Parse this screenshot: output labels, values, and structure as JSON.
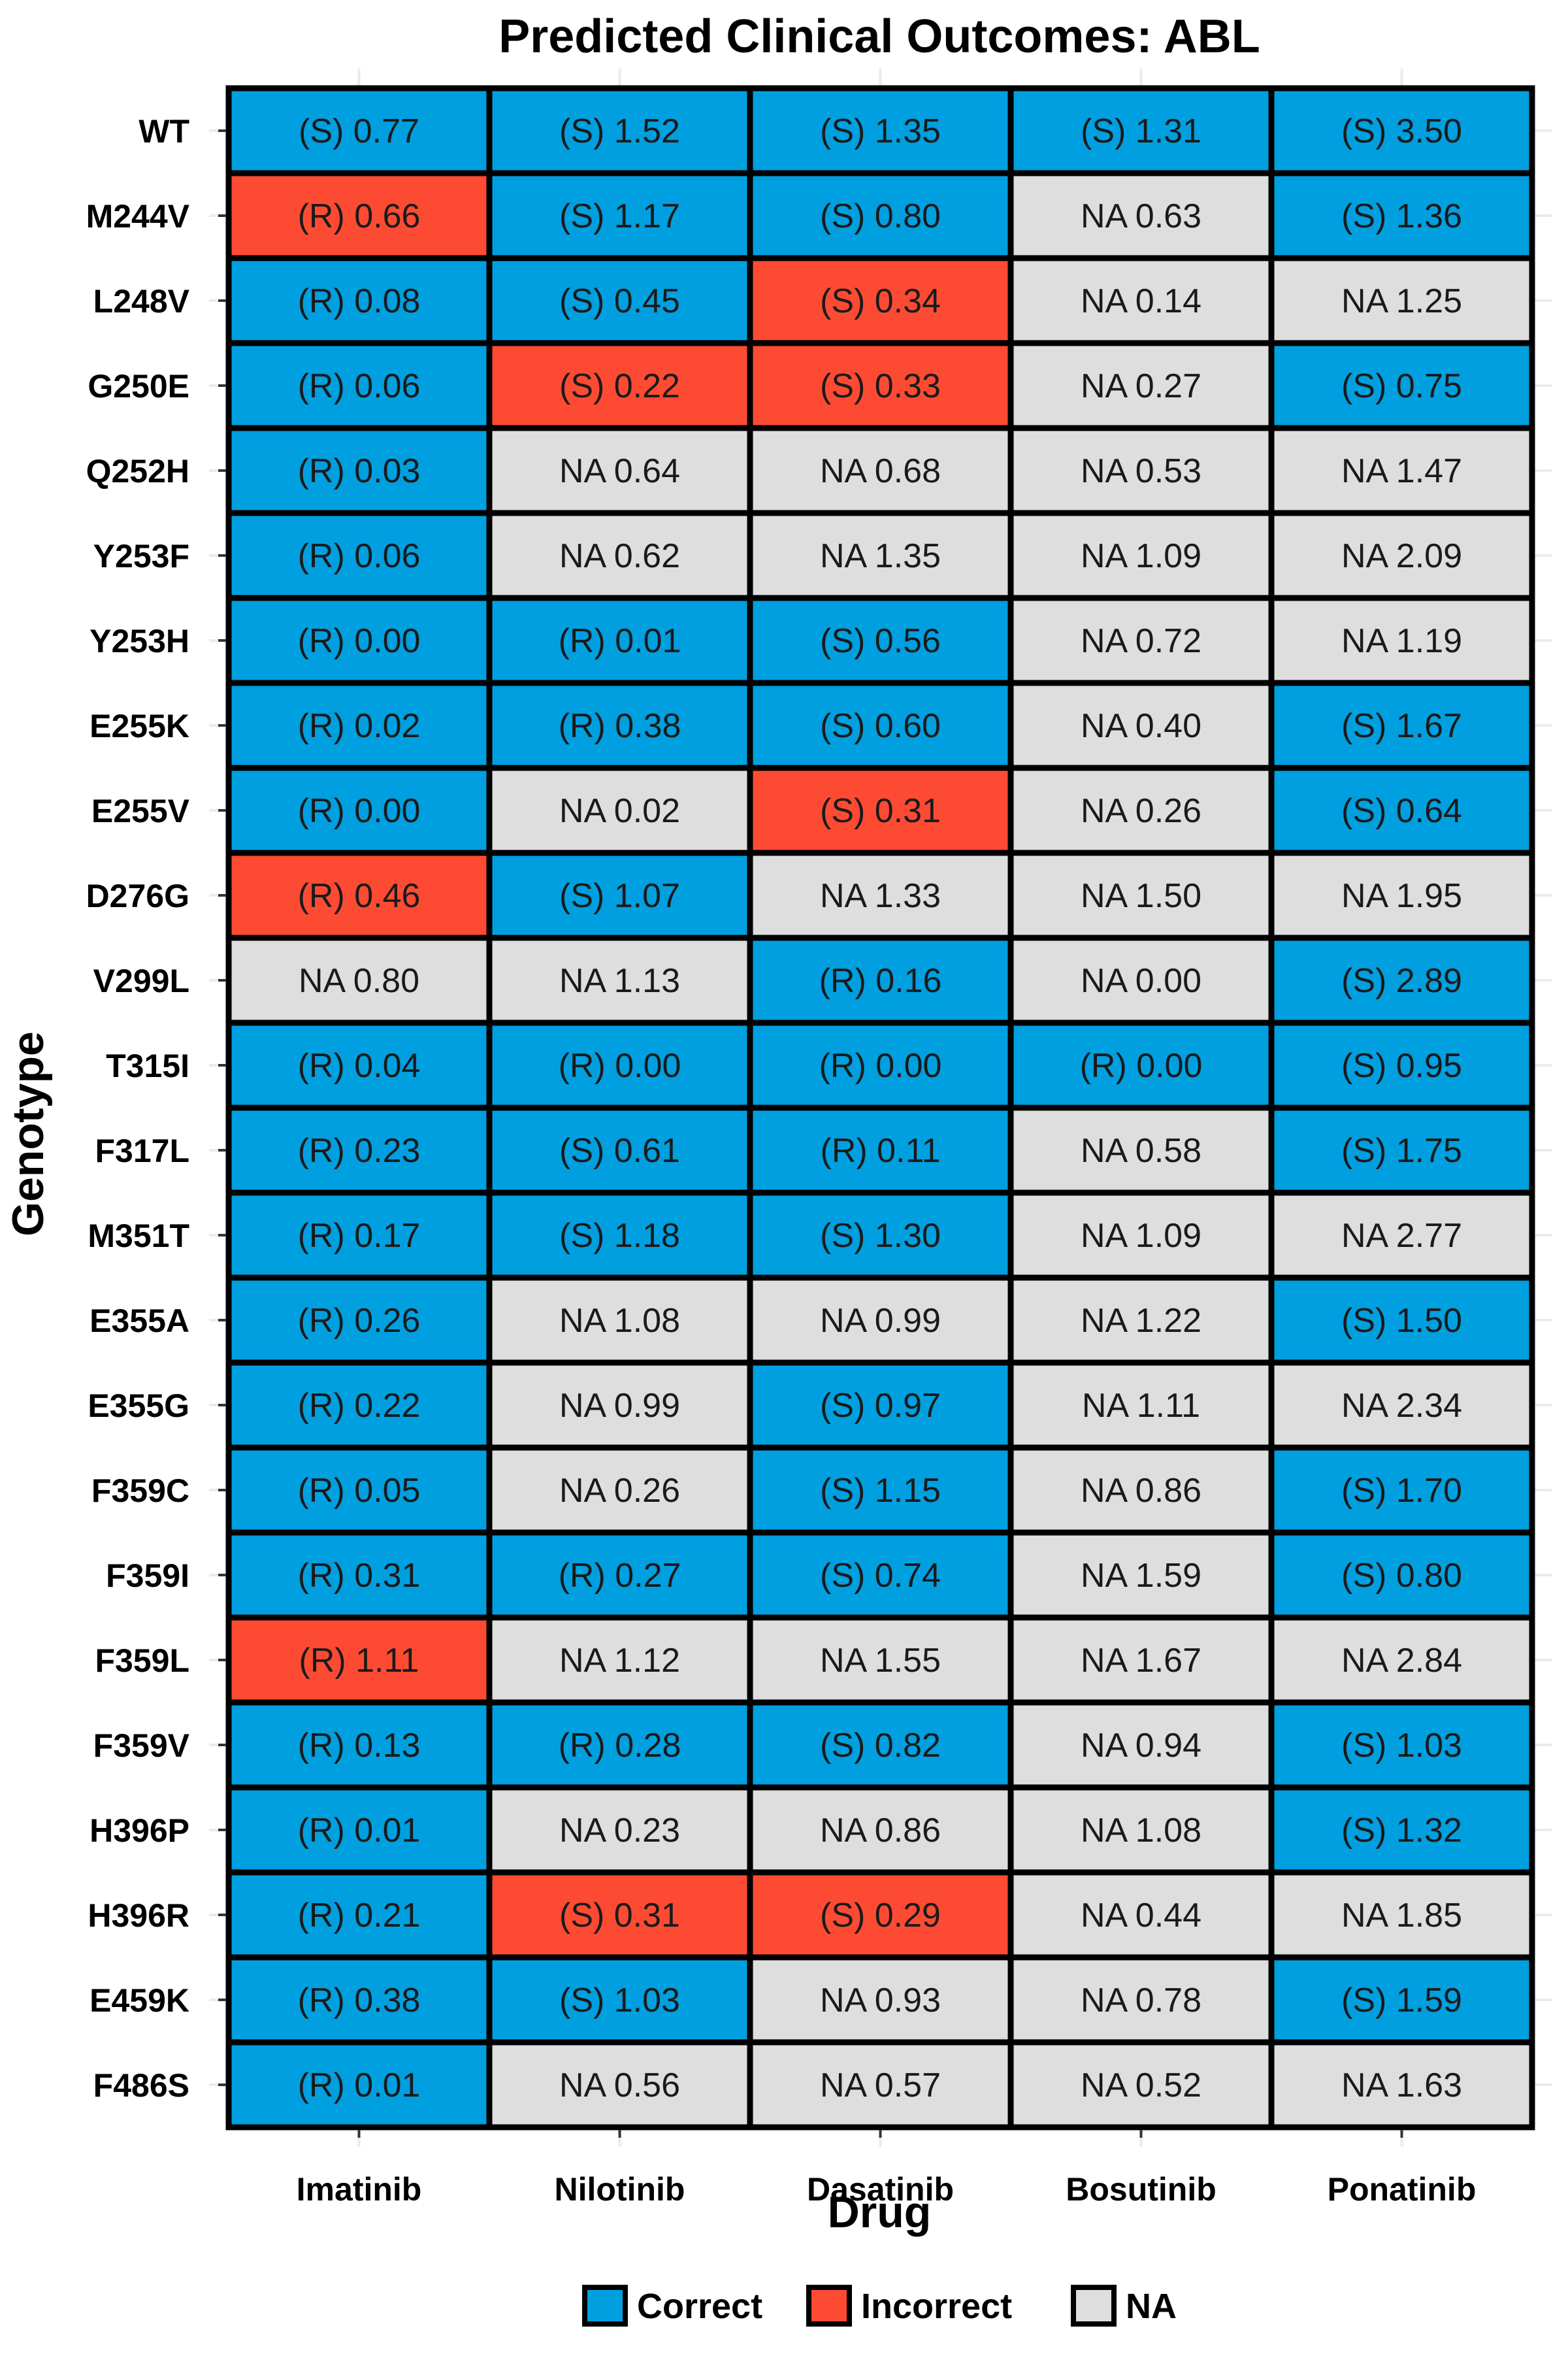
{
  "chart_data": {
    "type": "heatmap",
    "title": "Predicted Clinical Outcomes: ABL",
    "xlabel": "Drug",
    "ylabel": "Genotype",
    "categories": [
      "Imatinib",
      "Nilotinib",
      "Dasatinib",
      "Bosutinib",
      "Ponatinib"
    ],
    "rows": [
      "WT",
      "M244V",
      "L248V",
      "G250E",
      "Q252H",
      "Y253F",
      "Y253H",
      "E255K",
      "E255V",
      "D276G",
      "V299L",
      "T315I",
      "F317L",
      "M351T",
      "E355A",
      "E355G",
      "F359C",
      "F359I",
      "F359L",
      "F359V",
      "H396P",
      "H396R",
      "E459K",
      "F486S"
    ],
    "legend": {
      "placement": "bottom",
      "items": [
        {
          "key": "Correct",
          "label": "Correct",
          "color": "#009fdf"
        },
        {
          "key": "Incorrect",
          "label": "Incorrect",
          "color": "#fd4b33"
        },
        {
          "key": "NA",
          "label": "NA",
          "color": "#dedede"
        }
      ]
    },
    "cells": [
      [
        {
          "label": "(S) 0.77",
          "value": 0.77,
          "outcome": "Correct"
        },
        {
          "label": "(S) 1.52",
          "value": 1.52,
          "outcome": "Correct"
        },
        {
          "label": "(S) 1.35",
          "value": 1.35,
          "outcome": "Correct"
        },
        {
          "label": "(S) 1.31",
          "value": 1.31,
          "outcome": "Correct"
        },
        {
          "label": "(S) 3.50",
          "value": 3.5,
          "outcome": "Correct"
        }
      ],
      [
        {
          "label": "(R) 0.66",
          "value": 0.66,
          "outcome": "Incorrect"
        },
        {
          "label": "(S) 1.17",
          "value": 1.17,
          "outcome": "Correct"
        },
        {
          "label": "(S) 0.80",
          "value": 0.8,
          "outcome": "Correct"
        },
        {
          "label": "NA 0.63",
          "value": 0.63,
          "outcome": "NA"
        },
        {
          "label": "(S) 1.36",
          "value": 1.36,
          "outcome": "Correct"
        }
      ],
      [
        {
          "label": "(R) 0.08",
          "value": 0.08,
          "outcome": "Correct"
        },
        {
          "label": "(S) 0.45",
          "value": 0.45,
          "outcome": "Correct"
        },
        {
          "label": "(S) 0.34",
          "value": 0.34,
          "outcome": "Incorrect"
        },
        {
          "label": "NA 0.14",
          "value": 0.14,
          "outcome": "NA"
        },
        {
          "label": "NA 1.25",
          "value": 1.25,
          "outcome": "NA"
        }
      ],
      [
        {
          "label": "(R) 0.06",
          "value": 0.06,
          "outcome": "Correct"
        },
        {
          "label": "(S) 0.22",
          "value": 0.22,
          "outcome": "Incorrect"
        },
        {
          "label": "(S) 0.33",
          "value": 0.33,
          "outcome": "Incorrect"
        },
        {
          "label": "NA 0.27",
          "value": 0.27,
          "outcome": "NA"
        },
        {
          "label": "(S) 0.75",
          "value": 0.75,
          "outcome": "Correct"
        }
      ],
      [
        {
          "label": "(R) 0.03",
          "value": 0.03,
          "outcome": "Correct"
        },
        {
          "label": "NA 0.64",
          "value": 0.64,
          "outcome": "NA"
        },
        {
          "label": "NA 0.68",
          "value": 0.68,
          "outcome": "NA"
        },
        {
          "label": "NA 0.53",
          "value": 0.53,
          "outcome": "NA"
        },
        {
          "label": "NA 1.47",
          "value": 1.47,
          "outcome": "NA"
        }
      ],
      [
        {
          "label": "(R) 0.06",
          "value": 0.06,
          "outcome": "Correct"
        },
        {
          "label": "NA 0.62",
          "value": 0.62,
          "outcome": "NA"
        },
        {
          "label": "NA 1.35",
          "value": 1.35,
          "outcome": "NA"
        },
        {
          "label": "NA 1.09",
          "value": 1.09,
          "outcome": "NA"
        },
        {
          "label": "NA 2.09",
          "value": 2.09,
          "outcome": "NA"
        }
      ],
      [
        {
          "label": "(R) 0.00",
          "value": 0.0,
          "outcome": "Correct"
        },
        {
          "label": "(R) 0.01",
          "value": 0.01,
          "outcome": "Correct"
        },
        {
          "label": "(S) 0.56",
          "value": 0.56,
          "outcome": "Correct"
        },
        {
          "label": "NA 0.72",
          "value": 0.72,
          "outcome": "NA"
        },
        {
          "label": "NA 1.19",
          "value": 1.19,
          "outcome": "NA"
        }
      ],
      [
        {
          "label": "(R) 0.02",
          "value": 0.02,
          "outcome": "Correct"
        },
        {
          "label": "(R) 0.38",
          "value": 0.38,
          "outcome": "Correct"
        },
        {
          "label": "(S) 0.60",
          "value": 0.6,
          "outcome": "Correct"
        },
        {
          "label": "NA 0.40",
          "value": 0.4,
          "outcome": "NA"
        },
        {
          "label": "(S) 1.67",
          "value": 1.67,
          "outcome": "Correct"
        }
      ],
      [
        {
          "label": "(R) 0.00",
          "value": 0.0,
          "outcome": "Correct"
        },
        {
          "label": "NA 0.02",
          "value": 0.02,
          "outcome": "NA"
        },
        {
          "label": "(S) 0.31",
          "value": 0.31,
          "outcome": "Incorrect"
        },
        {
          "label": "NA 0.26",
          "value": 0.26,
          "outcome": "NA"
        },
        {
          "label": "(S) 0.64",
          "value": 0.64,
          "outcome": "Correct"
        }
      ],
      [
        {
          "label": "(R) 0.46",
          "value": 0.46,
          "outcome": "Incorrect"
        },
        {
          "label": "(S) 1.07",
          "value": 1.07,
          "outcome": "Correct"
        },
        {
          "label": "NA 1.33",
          "value": 1.33,
          "outcome": "NA"
        },
        {
          "label": "NA 1.50",
          "value": 1.5,
          "outcome": "NA"
        },
        {
          "label": "NA 1.95",
          "value": 1.95,
          "outcome": "NA"
        }
      ],
      [
        {
          "label": "NA 0.80",
          "value": 0.8,
          "outcome": "NA"
        },
        {
          "label": "NA 1.13",
          "value": 1.13,
          "outcome": "NA"
        },
        {
          "label": "(R) 0.16",
          "value": 0.16,
          "outcome": "Correct"
        },
        {
          "label": "NA 0.00",
          "value": 0.0,
          "outcome": "NA"
        },
        {
          "label": "(S) 2.89",
          "value": 2.89,
          "outcome": "Correct"
        }
      ],
      [
        {
          "label": "(R) 0.04",
          "value": 0.04,
          "outcome": "Correct"
        },
        {
          "label": "(R) 0.00",
          "value": 0.0,
          "outcome": "Correct"
        },
        {
          "label": "(R) 0.00",
          "value": 0.0,
          "outcome": "Correct"
        },
        {
          "label": "(R) 0.00",
          "value": 0.0,
          "outcome": "Correct"
        },
        {
          "label": "(S) 0.95",
          "value": 0.95,
          "outcome": "Correct"
        }
      ],
      [
        {
          "label": "(R) 0.23",
          "value": 0.23,
          "outcome": "Correct"
        },
        {
          "label": "(S) 0.61",
          "value": 0.61,
          "outcome": "Correct"
        },
        {
          "label": "(R) 0.11",
          "value": 0.11,
          "outcome": "Correct"
        },
        {
          "label": "NA 0.58",
          "value": 0.58,
          "outcome": "NA"
        },
        {
          "label": "(S) 1.75",
          "value": 1.75,
          "outcome": "Correct"
        }
      ],
      [
        {
          "label": "(R) 0.17",
          "value": 0.17,
          "outcome": "Correct"
        },
        {
          "label": "(S) 1.18",
          "value": 1.18,
          "outcome": "Correct"
        },
        {
          "label": "(S) 1.30",
          "value": 1.3,
          "outcome": "Correct"
        },
        {
          "label": "NA 1.09",
          "value": 1.09,
          "outcome": "NA"
        },
        {
          "label": "NA 2.77",
          "value": 2.77,
          "outcome": "NA"
        }
      ],
      [
        {
          "label": "(R) 0.26",
          "value": 0.26,
          "outcome": "Correct"
        },
        {
          "label": "NA 1.08",
          "value": 1.08,
          "outcome": "NA"
        },
        {
          "label": "NA 0.99",
          "value": 0.99,
          "outcome": "NA"
        },
        {
          "label": "NA 1.22",
          "value": 1.22,
          "outcome": "NA"
        },
        {
          "label": "(S) 1.50",
          "value": 1.5,
          "outcome": "Correct"
        }
      ],
      [
        {
          "label": "(R) 0.22",
          "value": 0.22,
          "outcome": "Correct"
        },
        {
          "label": "NA 0.99",
          "value": 0.99,
          "outcome": "NA"
        },
        {
          "label": "(S) 0.97",
          "value": 0.97,
          "outcome": "Correct"
        },
        {
          "label": "NA 1.11",
          "value": 1.11,
          "outcome": "NA"
        },
        {
          "label": "NA 2.34",
          "value": 2.34,
          "outcome": "NA"
        }
      ],
      [
        {
          "label": "(R) 0.05",
          "value": 0.05,
          "outcome": "Correct"
        },
        {
          "label": "NA 0.26",
          "value": 0.26,
          "outcome": "NA"
        },
        {
          "label": "(S) 1.15",
          "value": 1.15,
          "outcome": "Correct"
        },
        {
          "label": "NA 0.86",
          "value": 0.86,
          "outcome": "NA"
        },
        {
          "label": "(S) 1.70",
          "value": 1.7,
          "outcome": "Correct"
        }
      ],
      [
        {
          "label": "(R) 0.31",
          "value": 0.31,
          "outcome": "Correct"
        },
        {
          "label": "(R) 0.27",
          "value": 0.27,
          "outcome": "Correct"
        },
        {
          "label": "(S) 0.74",
          "value": 0.74,
          "outcome": "Correct"
        },
        {
          "label": "NA 1.59",
          "value": 1.59,
          "outcome": "NA"
        },
        {
          "label": "(S) 0.80",
          "value": 0.8,
          "outcome": "Correct"
        }
      ],
      [
        {
          "label": "(R) 1.11",
          "value": 1.11,
          "outcome": "Incorrect"
        },
        {
          "label": "NA 1.12",
          "value": 1.12,
          "outcome": "NA"
        },
        {
          "label": "NA 1.55",
          "value": 1.55,
          "outcome": "NA"
        },
        {
          "label": "NA 1.67",
          "value": 1.67,
          "outcome": "NA"
        },
        {
          "label": "NA 2.84",
          "value": 2.84,
          "outcome": "NA"
        }
      ],
      [
        {
          "label": "(R) 0.13",
          "value": 0.13,
          "outcome": "Correct"
        },
        {
          "label": "(R) 0.28",
          "value": 0.28,
          "outcome": "Correct"
        },
        {
          "label": "(S) 0.82",
          "value": 0.82,
          "outcome": "Correct"
        },
        {
          "label": "NA 0.94",
          "value": 0.94,
          "outcome": "NA"
        },
        {
          "label": "(S) 1.03",
          "value": 1.03,
          "outcome": "Correct"
        }
      ],
      [
        {
          "label": "(R) 0.01",
          "value": 0.01,
          "outcome": "Correct"
        },
        {
          "label": "NA 0.23",
          "value": 0.23,
          "outcome": "NA"
        },
        {
          "label": "NA 0.86",
          "value": 0.86,
          "outcome": "NA"
        },
        {
          "label": "NA 1.08",
          "value": 1.08,
          "outcome": "NA"
        },
        {
          "label": "(S) 1.32",
          "value": 1.32,
          "outcome": "Correct"
        }
      ],
      [
        {
          "label": "(R) 0.21",
          "value": 0.21,
          "outcome": "Correct"
        },
        {
          "label": "(S) 0.31",
          "value": 0.31,
          "outcome": "Incorrect"
        },
        {
          "label": "(S) 0.29",
          "value": 0.29,
          "outcome": "Incorrect"
        },
        {
          "label": "NA 0.44",
          "value": 0.44,
          "outcome": "NA"
        },
        {
          "label": "NA 1.85",
          "value": 1.85,
          "outcome": "NA"
        }
      ],
      [
        {
          "label": "(R) 0.38",
          "value": 0.38,
          "outcome": "Correct"
        },
        {
          "label": "(S) 1.03",
          "value": 1.03,
          "outcome": "Correct"
        },
        {
          "label": "NA 0.93",
          "value": 0.93,
          "outcome": "NA"
        },
        {
          "label": "NA 0.78",
          "value": 0.78,
          "outcome": "NA"
        },
        {
          "label": "(S) 1.59",
          "value": 1.59,
          "outcome": "Correct"
        }
      ],
      [
        {
          "label": "(R) 0.01",
          "value": 0.01,
          "outcome": "Correct"
        },
        {
          "label": "NA 0.56",
          "value": 0.56,
          "outcome": "NA"
        },
        {
          "label": "NA 0.57",
          "value": 0.57,
          "outcome": "NA"
        },
        {
          "label": "NA 0.52",
          "value": 0.52,
          "outcome": "NA"
        },
        {
          "label": "NA 1.63",
          "value": 1.63,
          "outcome": "NA"
        }
      ]
    ]
  }
}
